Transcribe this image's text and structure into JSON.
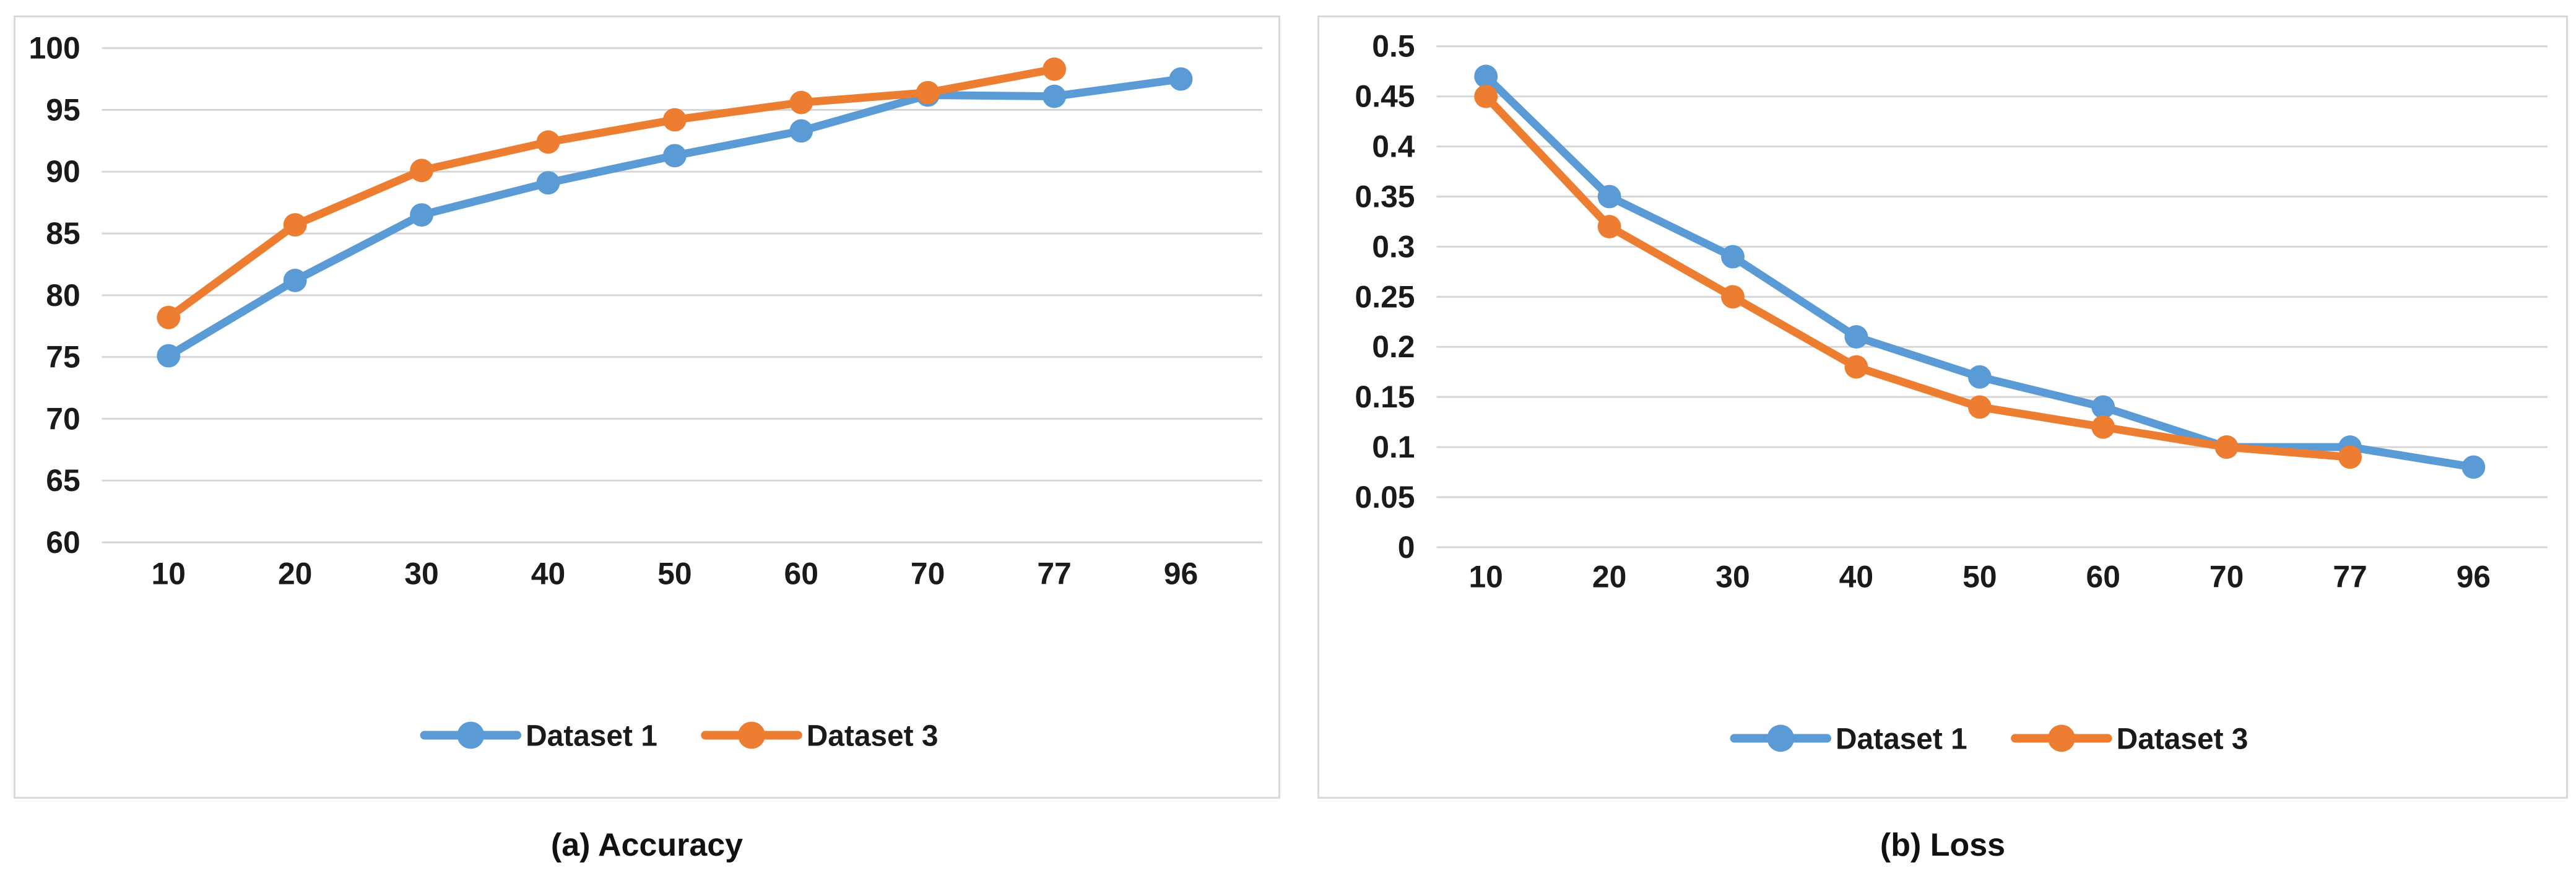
{
  "figure": {
    "background": "#ffffff",
    "panel_border_color": "#d9d9d9",
    "gridline_color": "#d6d6d6",
    "tick_label_color": "#1a1a1a",
    "panels": [
      {
        "caption": "(a) Accuracy"
      },
      {
        "caption": "(b) Loss"
      }
    ]
  },
  "chart_data": [
    {
      "type": "line",
      "title": "(a) Accuracy",
      "categories": [
        "10",
        "20",
        "30",
        "40",
        "50",
        "60",
        "70",
        "77",
        "96"
      ],
      "yticks": [
        "60",
        "65",
        "70",
        "75",
        "80",
        "85",
        "90",
        "95",
        "100"
      ],
      "ylim": [
        60,
        100
      ],
      "grid": true,
      "legend_position": "bottom",
      "series": [
        {
          "name": "Dataset 1",
          "color": "#5B9BD5",
          "values": [
            75.1,
            81.2,
            86.5,
            89.1,
            91.3,
            93.3,
            96.2,
            96.1,
            97.5
          ]
        },
        {
          "name": "Dataset 3",
          "color": "#ED7D31",
          "values": [
            78.2,
            85.7,
            90.1,
            92.4,
            94.2,
            95.6,
            96.4,
            98.3,
            null
          ]
        }
      ]
    },
    {
      "type": "line",
      "title": "(b) Loss",
      "categories": [
        "10",
        "20",
        "30",
        "40",
        "50",
        "60",
        "70",
        "77",
        "96"
      ],
      "yticks": [
        "0",
        "0.05",
        "0.1",
        "0.15",
        "0.2",
        "0.25",
        "0.3",
        "0.35",
        "0.4",
        "0.45",
        "0.5"
      ],
      "ylim": [
        0,
        0.5
      ],
      "grid": true,
      "legend_position": "bottom",
      "series": [
        {
          "name": "Dataset 1",
          "color": "#5B9BD5",
          "values": [
            0.47,
            0.35,
            0.29,
            0.21,
            0.17,
            0.14,
            0.1,
            0.1,
            0.08
          ]
        },
        {
          "name": "Dataset 3",
          "color": "#ED7D31",
          "values": [
            0.45,
            0.32,
            0.25,
            0.18,
            0.14,
            0.12,
            0.1,
            0.09,
            null
          ]
        }
      ]
    }
  ]
}
